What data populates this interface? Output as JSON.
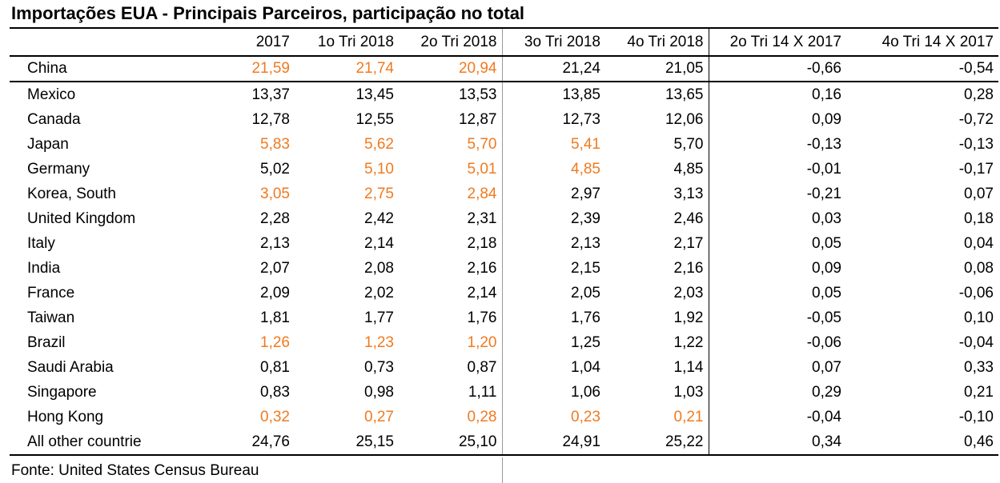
{
  "title": "Importações EUA - Principais Parceiros, participação no total",
  "source": "Fonte: United States Census Bureau",
  "colors": {
    "highlight": "#f07a1f"
  },
  "columns": [
    "",
    "2017",
    "1o Tri 2018",
    "2o Tri 2018",
    "3o Tri 2018",
    "4o Tri 2018",
    "2o Tri 14 X 2017",
    "4o Tri 14 X 2017"
  ],
  "rows": [
    {
      "country": "China",
      "v": [
        "21,59",
        "21,74",
        "20,94",
        "21,24",
        "21,05",
        "-0,66",
        "-0,54"
      ],
      "hl": [
        true,
        true,
        true,
        false,
        false,
        false,
        false
      ]
    },
    {
      "country": "Mexico",
      "v": [
        "13,37",
        "13,45",
        "13,53",
        "13,85",
        "13,65",
        "0,16",
        "0,28"
      ],
      "hl": [
        false,
        false,
        false,
        false,
        false,
        false,
        false
      ]
    },
    {
      "country": "Canada",
      "v": [
        "12,78",
        "12,55",
        "12,87",
        "12,73",
        "12,06",
        "0,09",
        "-0,72"
      ],
      "hl": [
        false,
        false,
        false,
        false,
        false,
        false,
        false
      ]
    },
    {
      "country": "Japan",
      "v": [
        "5,83",
        "5,62",
        "5,70",
        "5,41",
        "5,70",
        "-0,13",
        "-0,13"
      ],
      "hl": [
        true,
        true,
        true,
        true,
        false,
        false,
        false
      ]
    },
    {
      "country": "Germany",
      "v": [
        "5,02",
        "5,10",
        "5,01",
        "4,85",
        "4,85",
        "-0,01",
        "-0,17"
      ],
      "hl": [
        false,
        true,
        true,
        true,
        false,
        false,
        false
      ]
    },
    {
      "country": "Korea, South",
      "v": [
        "3,05",
        "2,75",
        "2,84",
        "2,97",
        "3,13",
        "-0,21",
        "0,07"
      ],
      "hl": [
        true,
        true,
        true,
        false,
        false,
        false,
        false
      ]
    },
    {
      "country": "United Kingdom",
      "v": [
        "2,28",
        "2,42",
        "2,31",
        "2,39",
        "2,46",
        "0,03",
        "0,18"
      ],
      "hl": [
        false,
        false,
        false,
        false,
        false,
        false,
        false
      ]
    },
    {
      "country": "Italy",
      "v": [
        "2,13",
        "2,14",
        "2,18",
        "2,13",
        "2,17",
        "0,05",
        "0,04"
      ],
      "hl": [
        false,
        false,
        false,
        false,
        false,
        false,
        false
      ]
    },
    {
      "country": "India",
      "v": [
        "2,07",
        "2,08",
        "2,16",
        "2,15",
        "2,16",
        "0,09",
        "0,08"
      ],
      "hl": [
        false,
        false,
        false,
        false,
        false,
        false,
        false
      ]
    },
    {
      "country": "France",
      "v": [
        "2,09",
        "2,02",
        "2,14",
        "2,05",
        "2,03",
        "0,05",
        "-0,06"
      ],
      "hl": [
        false,
        false,
        false,
        false,
        false,
        false,
        false
      ]
    },
    {
      "country": "Taiwan",
      "v": [
        "1,81",
        "1,77",
        "1,76",
        "1,76",
        "1,92",
        "-0,05",
        "0,10"
      ],
      "hl": [
        false,
        false,
        false,
        false,
        false,
        false,
        false
      ]
    },
    {
      "country": "Brazil",
      "v": [
        "1,26",
        "1,23",
        "1,20",
        "1,25",
        "1,22",
        "-0,06",
        "-0,04"
      ],
      "hl": [
        true,
        true,
        true,
        false,
        false,
        false,
        false
      ]
    },
    {
      "country": "Saudi Arabia",
      "v": [
        "0,81",
        "0,73",
        "0,87",
        "1,04",
        "1,14",
        "0,07",
        "0,33"
      ],
      "hl": [
        false,
        false,
        false,
        false,
        false,
        false,
        false
      ]
    },
    {
      "country": "Singapore",
      "v": [
        "0,83",
        "0,98",
        "1,11",
        "1,06",
        "1,03",
        "0,29",
        "0,21"
      ],
      "hl": [
        false,
        false,
        false,
        false,
        false,
        false,
        false
      ]
    },
    {
      "country": "Hong Kong",
      "v": [
        "0,32",
        "0,27",
        "0,28",
        "0,23",
        "0,21",
        "-0,04",
        "-0,10"
      ],
      "hl": [
        true,
        true,
        true,
        true,
        true,
        false,
        false
      ]
    },
    {
      "country": "All other countrie",
      "v": [
        "24,76",
        "25,15",
        "25,10",
        "24,91",
        "25,22",
        "0,34",
        "0,46"
      ],
      "hl": [
        false,
        false,
        false,
        false,
        false,
        false,
        false
      ]
    }
  ]
}
